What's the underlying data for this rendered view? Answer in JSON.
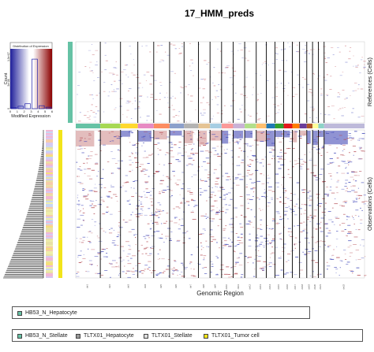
{
  "chart_data": {
    "type": "heatmap",
    "title": "17_HMM_preds",
    "xlabel": "Genomic Region",
    "references_label": "References (Cells)",
    "observations_label": "Observations (Cells)",
    "color_key": {
      "title": "Distribution of Expression",
      "xlabel": "Modified Expression",
      "ylabel": "Count",
      "x_ticks": [
        "0",
        "1",
        "2",
        "3",
        "4",
        "5",
        "6"
      ],
      "y_ticks": [
        "0",
        "5e+06",
        "1.5e+07"
      ],
      "colors": [
        "#2b2ba0",
        "#ffffff",
        "#8b0000"
      ],
      "hist_values": [
        0.02,
        0.05,
        0.1,
        1.0,
        0.06,
        0.03
      ]
    },
    "chromosome_colors": [
      "#66c2a5",
      "#a6d854",
      "#ffd92f",
      "#e78ac3",
      "#fc8d62",
      "#8da0cb",
      "#b3b3b3",
      "#e5c494",
      "#a6cee3",
      "#fb9a99",
      "#cab2d6",
      "#b2df8a",
      "#fdbf6f",
      "#1f78b4",
      "#33a02c",
      "#e31a1c",
      "#ff7f00",
      "#6a3d9a",
      "#b15928",
      "#ffff99",
      "#8dd3c7",
      "#bebada"
    ],
    "chromosome_boundaries": [
      0.085,
      0.155,
      0.215,
      0.27,
      0.325,
      0.375,
      0.425,
      0.465,
      0.505,
      0.545,
      0.585,
      0.625,
      0.66,
      0.69,
      0.72,
      0.75,
      0.775,
      0.8,
      0.82,
      0.84,
      0.86
    ],
    "chromosome_ticks": [
      "chr1",
      "chr2",
      "chr3",
      "chr4",
      "chr5",
      "chr6",
      "chr7",
      "chr8",
      "chr9",
      "chr10",
      "chr11",
      "chr12",
      "chr13",
      "chr14",
      "chr15",
      "chr16",
      "chr17",
      "chr18",
      "chr19",
      "chr20",
      "chr21",
      "chr22"
    ],
    "legend": {
      "box1": [
        {
          "label": "HB53_N_Hepatocyte",
          "color": "#66c2a5"
        }
      ],
      "box2": [
        {
          "label": "HB53_N_Stellate",
          "color": "#66c2a5"
        },
        {
          "label": "TLTX01_Hepatocyte",
          "color": "#999999"
        },
        {
          "label": "TLTX01_Stellate",
          "color": "#dddddd"
        },
        {
          "label": "TLTX01_Tumor cell",
          "color": "#f2e41a"
        }
      ]
    }
  }
}
